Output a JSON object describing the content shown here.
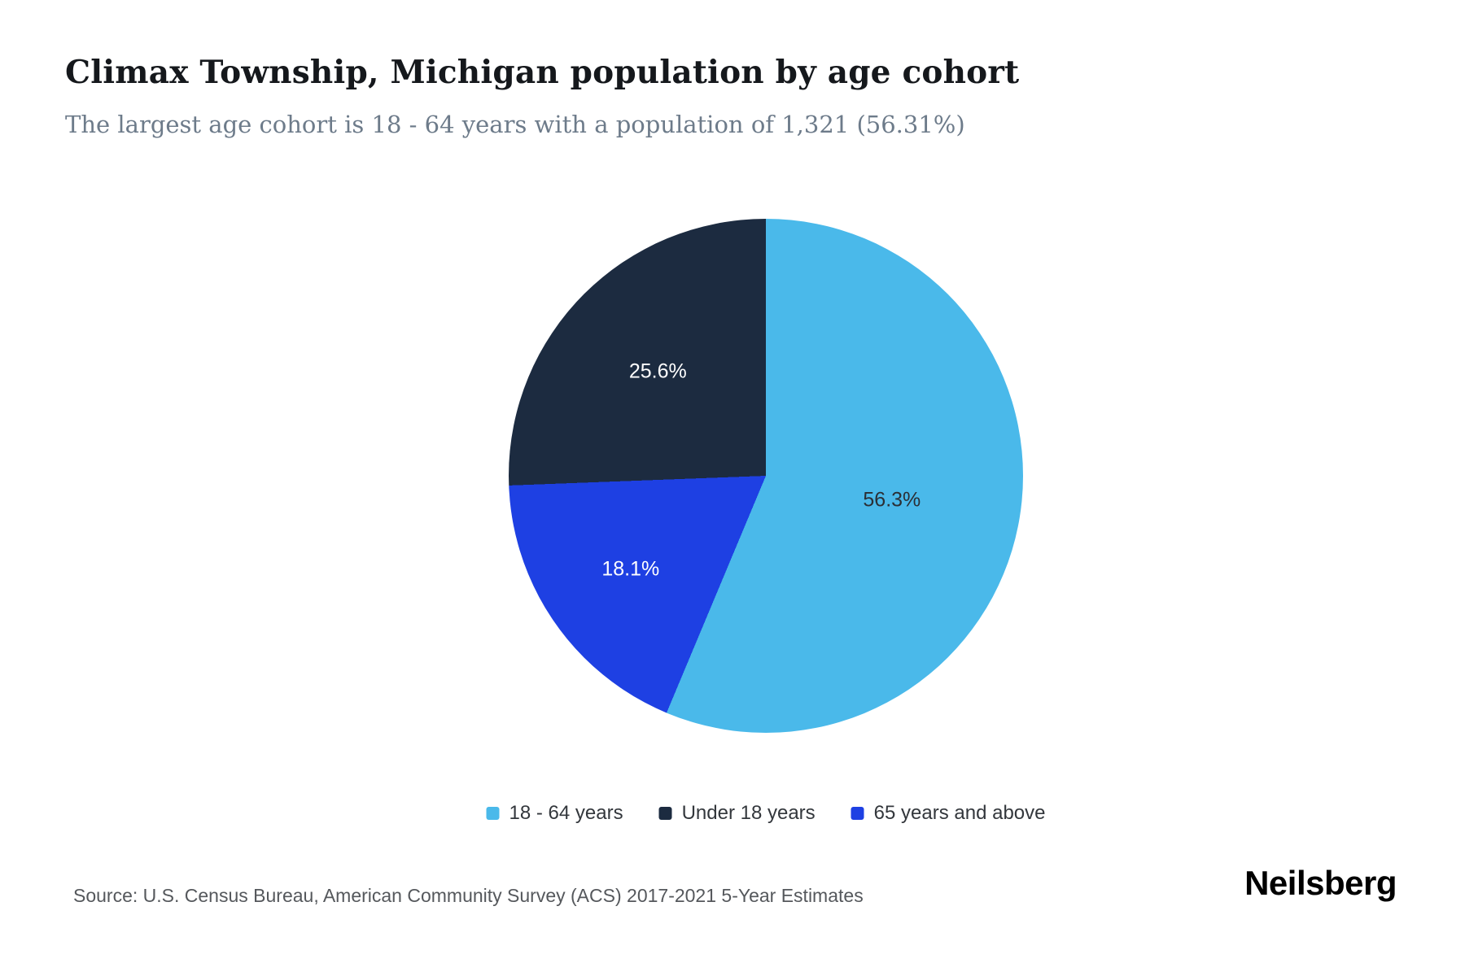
{
  "header": {
    "title": "Climax Township, Michigan population by age cohort",
    "subtitle": "The largest age cohort is 18 - 64 years with a population of 1,321 (56.31%)"
  },
  "chart_data": {
    "type": "pie",
    "title": "Climax Township, Michigan population by age cohort",
    "subtitle": "The largest age cohort is 18 - 64 years with a population of 1,321 (56.31%)",
    "slices": [
      {
        "label": "18 - 64 years",
        "percent": 56.31,
        "display_percent": "56.3%",
        "population": "1,321",
        "color": "#4ab9ea"
      },
      {
        "label": "Under 18 years",
        "percent": 25.6,
        "display_percent": "25.6%",
        "color": "#1c2b40"
      },
      {
        "label": "65 years and above",
        "percent": 18.09,
        "display_percent": "18.1%",
        "color": "#1e40e3"
      }
    ],
    "clockwise_from_top": [
      "18 - 64 years",
      "65 years and above",
      "Under 18 years"
    ],
    "legend": [
      "18 - 64 years",
      "Under 18 years",
      "65 years and above"
    ],
    "legend_position": "bottom",
    "label_color_on_light": "#2b2f35",
    "label_color_on_dark": "#ffffff"
  },
  "footer": {
    "source": "Source: U.S. Census Bureau, American Community Survey (ACS) 2017-2021 5-Year Estimates",
    "brand": "Neilsberg"
  }
}
